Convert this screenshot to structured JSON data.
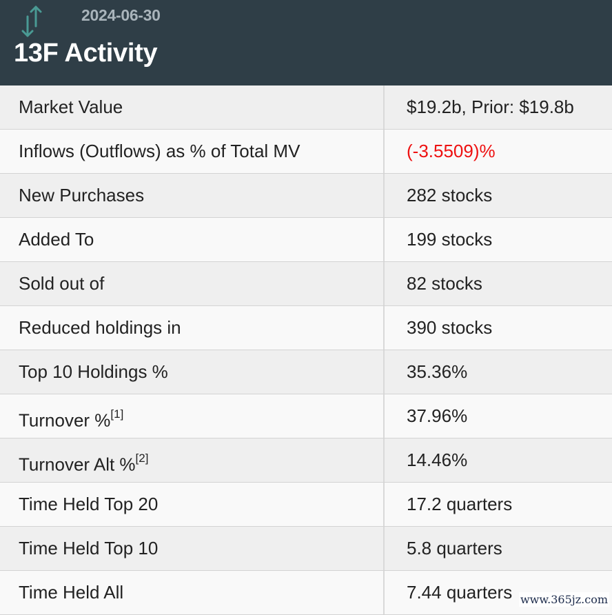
{
  "header": {
    "date": "2024-06-30",
    "title": "13F Activity",
    "icon": "up-down-arrows-icon",
    "colors": {
      "background": "#2f3e47",
      "icon": "#4a9a94",
      "date": "#a9b4bb"
    }
  },
  "rows": [
    {
      "label": "Market Value",
      "sup": "",
      "value": "$19.2b, Prior: $19.8b"
    },
    {
      "label": "Inflows (Outflows) as % of Total MV",
      "sup": "",
      "value": "(-3.5509)%",
      "negative": true
    },
    {
      "label": "New Purchases",
      "sup": "",
      "value": "282 stocks"
    },
    {
      "label": "Added To",
      "sup": "",
      "value": "199 stocks"
    },
    {
      "label": "Sold out of",
      "sup": "",
      "value": "82 stocks"
    },
    {
      "label": "Reduced holdings in",
      "sup": "",
      "value": "390 stocks"
    },
    {
      "label": "Top 10 Holdings %",
      "sup": "",
      "value": "35.36%"
    },
    {
      "label": "Turnover %",
      "sup": "[1]",
      "value": "37.96%"
    },
    {
      "label": "Turnover Alt %",
      "sup": "[2]",
      "value": "14.46%"
    },
    {
      "label": "Time Held Top 20",
      "sup": "",
      "value": "17.2 quarters"
    },
    {
      "label": "Time Held Top 10",
      "sup": "",
      "value": "5.8 quarters"
    },
    {
      "label": "Time Held All",
      "sup": "",
      "value": "7.44 quarters"
    }
  ],
  "watermark": "www.365jz.com",
  "colors": {
    "negative": "#ee1111",
    "row_odd": "#efefef",
    "row_even": "#f9f9f9"
  }
}
